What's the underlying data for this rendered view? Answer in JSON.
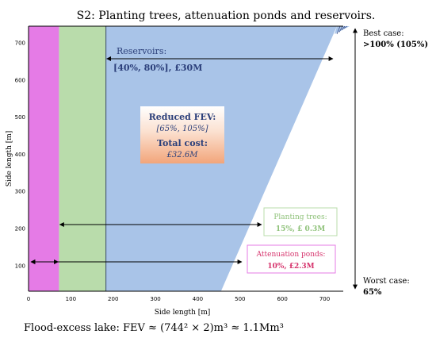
{
  "chart_data": {
    "type": "area",
    "title": "S2: Planting trees, attenuation ponds and reservoirs.",
    "xlabel": "Side length [m]",
    "ylabel": "Side length [m]",
    "xlim": [
      0,
      744
    ],
    "ylim": [
      30,
      744
    ],
    "xticks": [
      0,
      100,
      200,
      300,
      400,
      500,
      600,
      700
    ],
    "yticks": [
      100,
      200,
      300,
      400,
      500,
      600,
      700
    ],
    "grid": false,
    "regions": [
      {
        "name": "Attenuation ponds",
        "x_from": 0,
        "x_to": 72,
        "color": "#e57be6"
      },
      {
        "name": "Planting trees",
        "x_from": 72,
        "x_to": 183,
        "color": "#b9dcab"
      },
      {
        "name": "Reservoirs",
        "x_from": 183,
        "x_to_bottom": 455,
        "x_to_top": 744,
        "color": "#a9c4e8"
      }
    ],
    "annotations": {
      "reservoirs": {
        "title": "Reservoirs:",
        "detail": "[40%, 80%],   £30M"
      },
      "center": {
        "reduced_title": "Reduced FEV:",
        "reduced_range": "[65%, 105%]",
        "cost_title": "Total cost:",
        "cost_value": "£32.6M"
      },
      "planting": {
        "title": "Planting trees:",
        "detail": "15%, £ 0.3M"
      },
      "ponds": {
        "title": "Attenuation ponds:",
        "detail": "10%,  £2.3M"
      },
      "best_case": {
        "title": "Best case:",
        "value": ">100% (105%)"
      },
      "worst_case": {
        "title": "Worst case:",
        "value": "65%"
      }
    },
    "footer": "Flood-excess lake: FEV ≈ (744² × 2)m³ ≈ 1.1Mm³"
  },
  "colors": {
    "ponds": "#e57be6",
    "trees": "#b9dcab",
    "reservoir": "#a9c4e8",
    "reservoir_text": "#2b3f7a",
    "trees_text": "#8fc27a",
    "ponds_text": "#d6336c",
    "center_text": "#2b3f7a"
  }
}
